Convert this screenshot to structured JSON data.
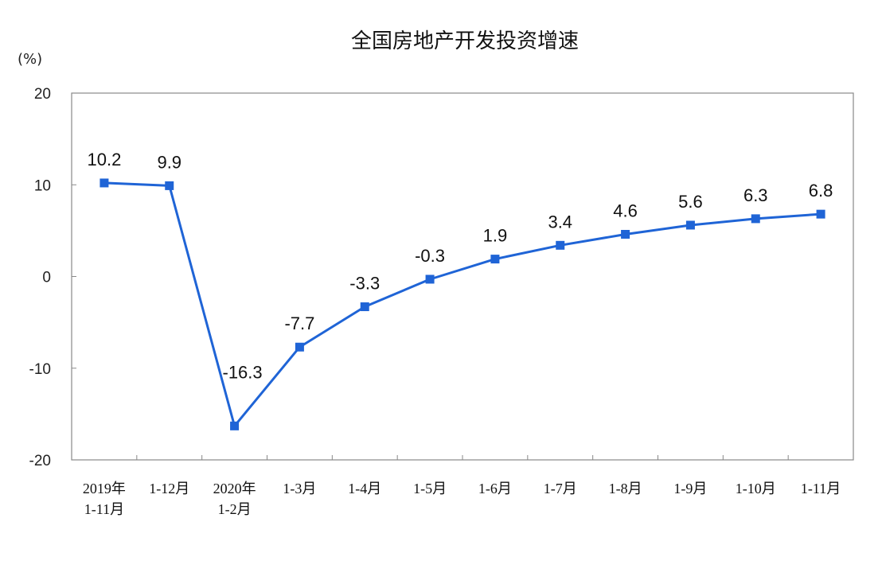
{
  "chart_data": {
    "type": "line",
    "title": "全国房地产开发投资增速",
    "ylabel": "(%)",
    "xlabel": "",
    "ylim": [
      -20,
      20
    ],
    "yticks": [
      "20",
      "10",
      "0",
      "-10",
      "-20"
    ],
    "grid": false,
    "categories": [
      [
        "2019年",
        "1-11月"
      ],
      [
        "1-12月"
      ],
      [
        "2020年",
        "1-2月"
      ],
      [
        "1-3月"
      ],
      [
        "1-4月"
      ],
      [
        "1-5月"
      ],
      [
        "1-6月"
      ],
      [
        "1-7月"
      ],
      [
        "1-8月"
      ],
      [
        "1-9月"
      ],
      [
        "1-10月"
      ],
      [
        "1-11月"
      ]
    ],
    "values": [
      10.2,
      9.9,
      -16.3,
      -7.7,
      -3.3,
      -0.3,
      1.9,
      3.4,
      4.6,
      5.6,
      6.3,
      6.8
    ],
    "data_labels": [
      "10.2",
      "9.9",
      "-16.3",
      "-7.7",
      "-3.3",
      "-0.3",
      "1.9",
      "3.4",
      "4.6",
      "5.6",
      "6.3",
      "6.8"
    ],
    "line_color": "#1f64d6",
    "marker_color": "#1f64d6",
    "axis_color": "#888888"
  }
}
